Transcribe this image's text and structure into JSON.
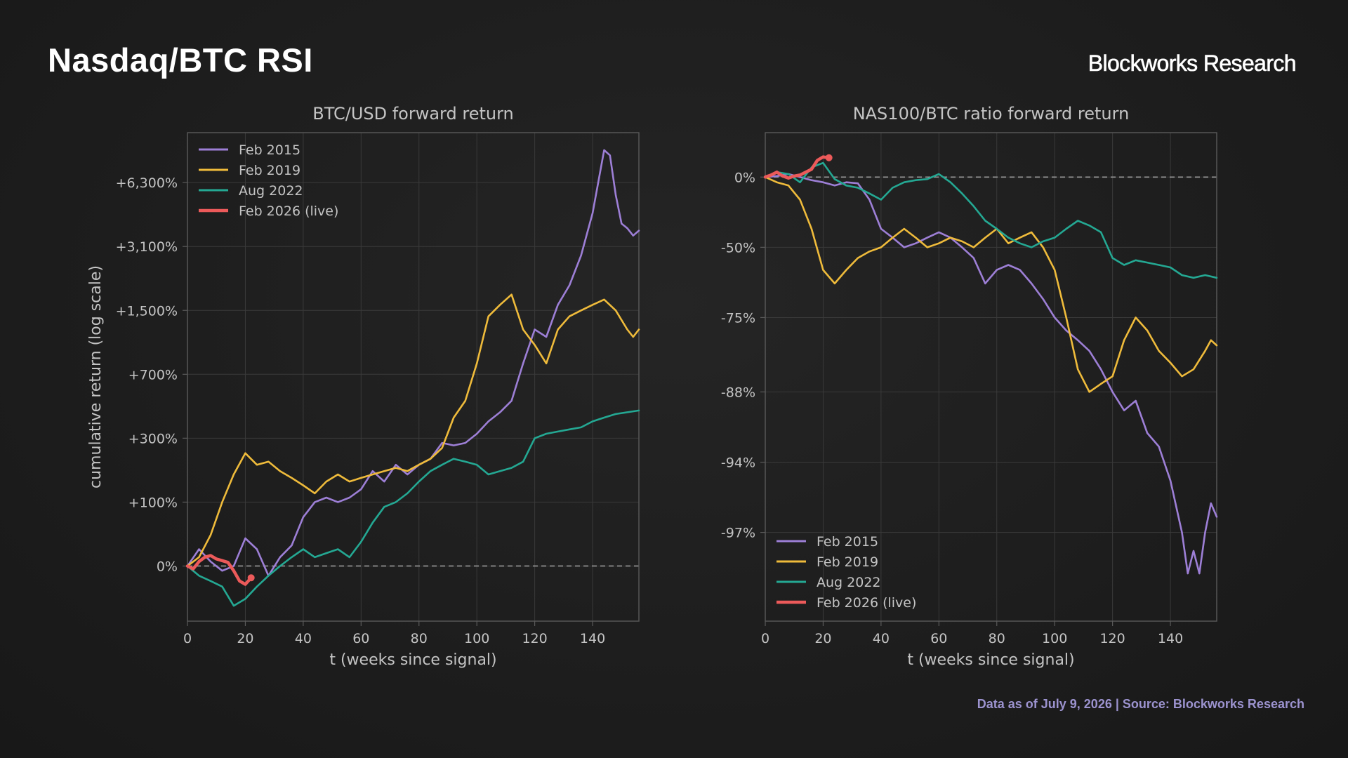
{
  "header": {
    "title": "Nasdaq/BTC RSI",
    "brand": "Blockworks Research"
  },
  "footer": {
    "source": "Data as of July 9, 2026 | Source: Blockworks Research"
  },
  "colors": {
    "feb2015": "#9d7fd6",
    "feb2019": "#efbb3b",
    "aug2022": "#24a893",
    "feb2026": "#ec5a5a",
    "grid": "#3a3a3a",
    "axes": "#5a5a5a",
    "zero_line": "#9a9a9a"
  },
  "chart_data": [
    {
      "type": "line",
      "title": "BTC/USD forward return",
      "xlabel": "t (weeks since signal)",
      "ylabel": "cumulative return (log scale)",
      "log_scale": true,
      "xlim": [
        0,
        156
      ],
      "x_ticks": [
        0,
        20,
        40,
        60,
        80,
        100,
        120,
        140
      ],
      "y_ticks": [
        {
          "label": "0%",
          "value": 0
        },
        {
          "label": "+100%",
          "value": 100
        },
        {
          "label": "+300%",
          "value": 300
        },
        {
          "label": "+700%",
          "value": 700
        },
        {
          "label": "+1,500%",
          "value": 1500
        },
        {
          "label": "+3,100%",
          "value": 3100
        },
        {
          "label": "+6,300%",
          "value": 6300
        }
      ],
      "ylim_multiple": [
        0.55,
        110
      ],
      "grid": true,
      "legend_position": "top-left",
      "series": [
        {
          "name": "Feb 2015",
          "color_key": "feb2015",
          "x": [
            0,
            4,
            8,
            12,
            16,
            20,
            24,
            28,
            32,
            36,
            40,
            44,
            48,
            52,
            56,
            60,
            64,
            68,
            72,
            76,
            80,
            84,
            88,
            92,
            96,
            100,
            104,
            108,
            112,
            116,
            120,
            124,
            128,
            132,
            136,
            140,
            144,
            146,
            148,
            150,
            152,
            154,
            156
          ],
          "y": [
            0,
            20,
            5,
            -5,
            0,
            35,
            20,
            -10,
            10,
            25,
            70,
            100,
            110,
            100,
            110,
            130,
            180,
            150,
            200,
            170,
            200,
            220,
            280,
            270,
            280,
            320,
            380,
            430,
            500,
            800,
            1200,
            1100,
            1600,
            2000,
            2800,
            4500,
            9000,
            8500,
            5500,
            4000,
            3800,
            3500,
            3700
          ]
        },
        {
          "name": "Feb 2019",
          "color_key": "feb2019",
          "x": [
            0,
            4,
            8,
            12,
            16,
            20,
            24,
            28,
            32,
            36,
            40,
            44,
            48,
            52,
            56,
            60,
            64,
            68,
            72,
            76,
            80,
            84,
            88,
            92,
            96,
            100,
            104,
            108,
            112,
            116,
            120,
            124,
            128,
            132,
            136,
            140,
            144,
            148,
            152,
            154,
            156
          ],
          "y": [
            0,
            10,
            40,
            100,
            170,
            240,
            200,
            210,
            180,
            160,
            140,
            120,
            150,
            170,
            150,
            160,
            170,
            180,
            190,
            180,
            200,
            220,
            260,
            400,
            500,
            800,
            1400,
            1600,
            1800,
            1200,
            1000,
            800,
            1200,
            1400,
            1500,
            1600,
            1700,
            1500,
            1200,
            1100,
            1200
          ]
        },
        {
          "name": "Aug 2022",
          "color_key": "aug2022",
          "x": [
            0,
            4,
            8,
            12,
            16,
            20,
            24,
            28,
            32,
            36,
            40,
            44,
            48,
            52,
            56,
            60,
            64,
            68,
            72,
            76,
            80,
            84,
            88,
            92,
            96,
            100,
            104,
            108,
            112,
            116,
            120,
            124,
            128,
            132,
            136,
            140,
            144,
            148,
            152,
            156
          ],
          "y": [
            0,
            -10,
            -15,
            -20,
            -35,
            -30,
            -20,
            -10,
            0,
            10,
            20,
            10,
            15,
            20,
            10,
            30,
            60,
            90,
            100,
            120,
            150,
            180,
            200,
            220,
            210,
            200,
            170,
            180,
            190,
            210,
            300,
            320,
            330,
            340,
            350,
            380,
            400,
            420,
            430,
            440
          ]
        },
        {
          "name": "Feb 2026 (live)",
          "color_key": "feb2026",
          "x": [
            0,
            2,
            4,
            6,
            8,
            10,
            12,
            14,
            16,
            18,
            20,
            22
          ],
          "y": [
            0,
            -3,
            5,
            10,
            12,
            8,
            6,
            4,
            -5,
            -15,
            -18,
            -12
          ]
        }
      ]
    },
    {
      "type": "line",
      "title": "NAS100/BTC ratio forward return",
      "xlabel": "t (weeks since signal)",
      "ylabel": "",
      "log_scale": true,
      "xlim": [
        0,
        156
      ],
      "x_ticks": [
        0,
        20,
        40,
        60,
        80,
        100,
        120,
        140
      ],
      "y_ticks": [
        {
          "label": "0%",
          "value": 0
        },
        {
          "label": "-50%",
          "value": -50
        },
        {
          "label": "-75%",
          "value": -75
        },
        {
          "label": "-88%",
          "value": -88
        },
        {
          "label": "-94%",
          "value": -94
        },
        {
          "label": "-97%",
          "value": -97
        }
      ],
      "ylim_multiple": [
        0.0125,
        1.55
      ],
      "grid": true,
      "legend_position": "bottom-left",
      "series": [
        {
          "name": "Feb 2015",
          "color_key": "feb2015",
          "x": [
            0,
            4,
            8,
            12,
            16,
            20,
            24,
            28,
            32,
            36,
            40,
            44,
            48,
            52,
            56,
            60,
            64,
            68,
            72,
            76,
            80,
            84,
            88,
            92,
            96,
            100,
            104,
            108,
            112,
            116,
            120,
            124,
            128,
            132,
            136,
            140,
            144,
            146,
            148,
            150,
            152,
            154,
            156
          ],
          "y": [
            0,
            1,
            3,
            0,
            -3,
            -5,
            -8,
            -5,
            -6,
            -20,
            -40,
            -45,
            -50,
            -48,
            -45,
            -42,
            -45,
            -50,
            -55,
            -65,
            -60,
            -58,
            -60,
            -65,
            -70,
            -75,
            -78,
            -80,
            -82,
            -85,
            -88,
            -90,
            -89,
            -92,
            -93,
            -95,
            -97,
            -98,
            -97.5,
            -98,
            -97,
            -96,
            -96.5
          ]
        },
        {
          "name": "Feb 2019",
          "color_key": "feb2019",
          "x": [
            0,
            4,
            8,
            12,
            16,
            20,
            24,
            28,
            32,
            36,
            40,
            44,
            48,
            52,
            56,
            60,
            64,
            68,
            72,
            76,
            80,
            84,
            88,
            92,
            96,
            100,
            104,
            108,
            112,
            116,
            120,
            124,
            128,
            132,
            136,
            140,
            144,
            148,
            152,
            154,
            156
          ],
          "y": [
            0,
            -5,
            -8,
            -20,
            -40,
            -60,
            -65,
            -60,
            -55,
            -52,
            -50,
            -45,
            -40,
            -45,
            -50,
            -48,
            -45,
            -47,
            -50,
            -45,
            -40,
            -48,
            -45,
            -42,
            -50,
            -60,
            -75,
            -85,
            -88,
            -87,
            -86,
            -80,
            -75,
            -78,
            -82,
            -84,
            -86,
            -85,
            -82,
            -80,
            -81
          ]
        },
        {
          "name": "Aug 2022",
          "color_key": "aug2022",
          "x": [
            0,
            4,
            8,
            12,
            16,
            20,
            24,
            28,
            32,
            36,
            40,
            44,
            48,
            52,
            56,
            60,
            64,
            68,
            72,
            76,
            80,
            84,
            88,
            92,
            96,
            100,
            104,
            108,
            112,
            116,
            120,
            124,
            128,
            132,
            136,
            140,
            144,
            148,
            152,
            156
          ],
          "y": [
            0,
            5,
            3,
            -5,
            10,
            15,
            -2,
            -8,
            -10,
            -15,
            -20,
            -10,
            -5,
            -3,
            -2,
            3,
            -5,
            -15,
            -25,
            -35,
            -40,
            -45,
            -48,
            -50,
            -47,
            -45,
            -40,
            -35,
            -38,
            -42,
            -55,
            -58,
            -56,
            -57,
            -58,
            -59,
            -62,
            -63,
            -62,
            -63
          ]
        },
        {
          "name": "Feb 2026 (live)",
          "color_key": "feb2026",
          "x": [
            0,
            2,
            4,
            6,
            8,
            10,
            12,
            14,
            16,
            18,
            20,
            22
          ],
          "y": [
            0,
            2,
            5,
            1,
            -1,
            1,
            2,
            5,
            8,
            18,
            22,
            21
          ]
        }
      ]
    }
  ]
}
